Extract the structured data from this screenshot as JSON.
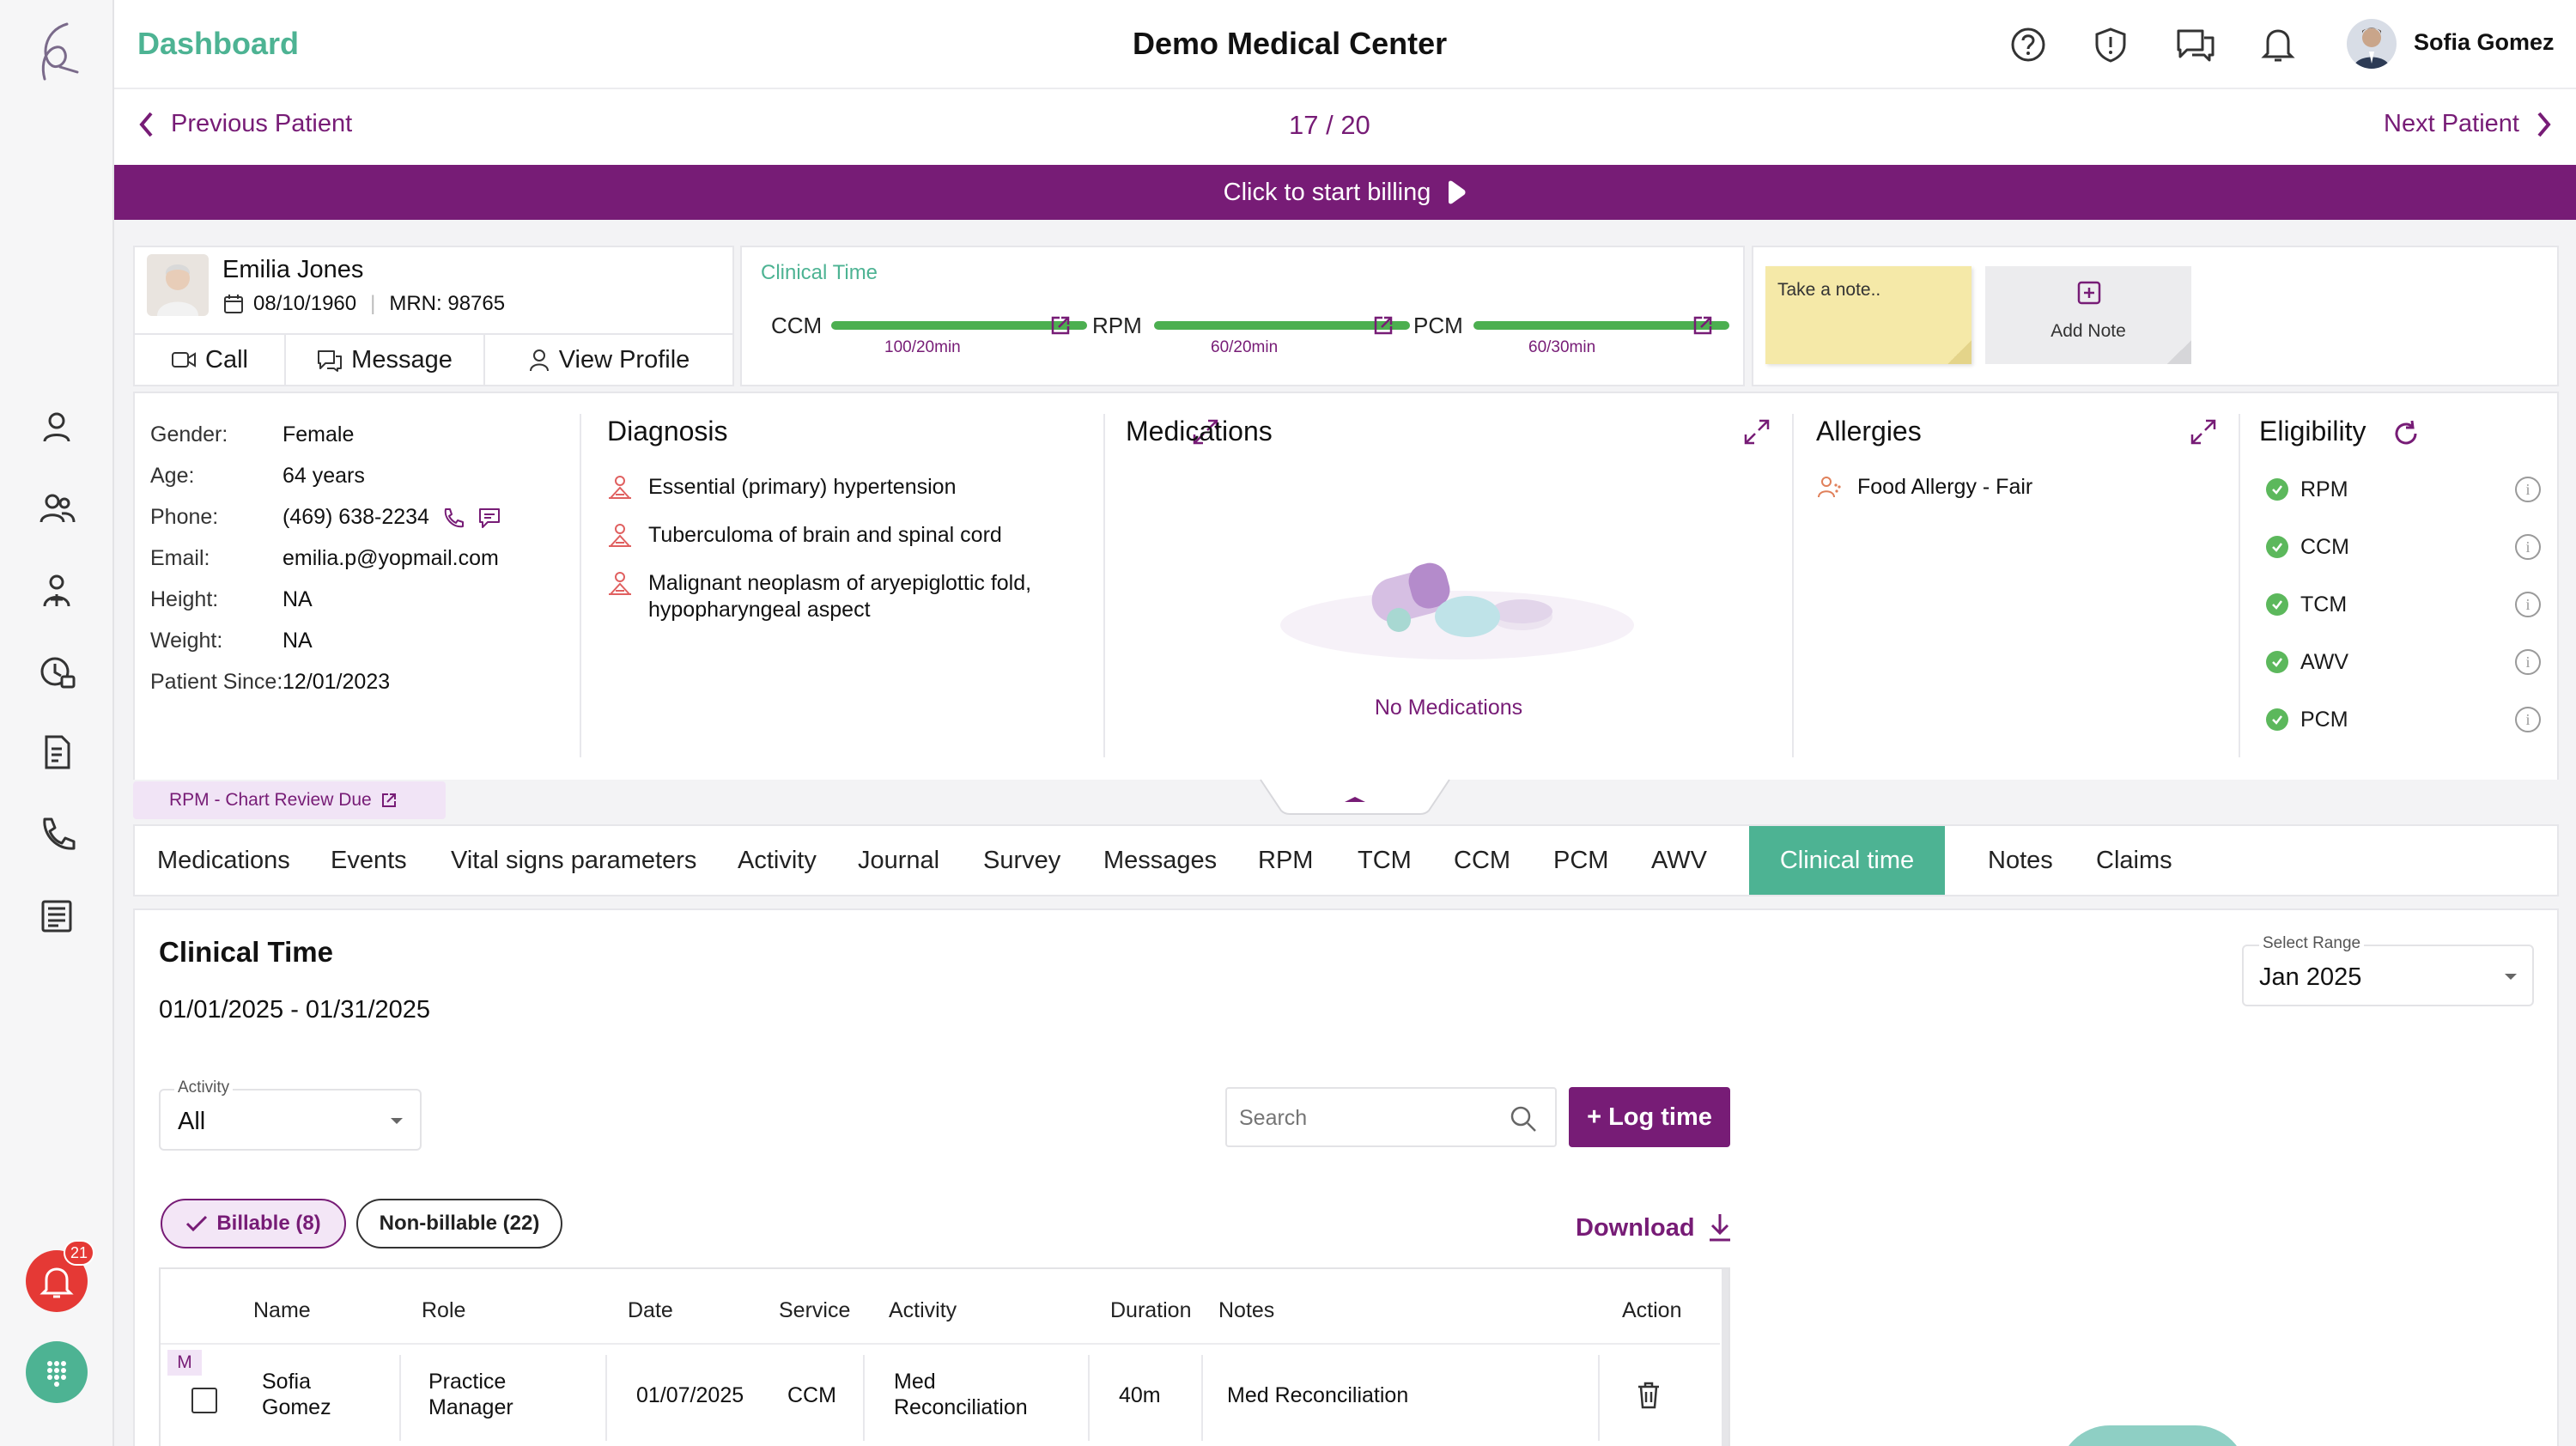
{
  "header": {
    "title": "Dashboard",
    "center_title": "Demo Medical Center",
    "user_name": "Sofia Gomez"
  },
  "nav": {
    "prev": "Previous Patient",
    "counter": "17 / 20",
    "next": "Next Patient"
  },
  "billing": {
    "label": "Click to start billing"
  },
  "patient": {
    "name": "Emilia Jones",
    "dob": "08/10/1960",
    "mrn": "MRN: 98765",
    "actions": {
      "call": "Call",
      "message": "Message",
      "profile": "View Profile"
    },
    "details": {
      "gender_label": "Gender:",
      "gender": "Female",
      "age_label": "Age:",
      "age": "64 years",
      "phone_label": "Phone:",
      "phone": "(469) 638-2234",
      "email_label": "Email:",
      "email": "emilia.p@yopmail.com",
      "height_label": "Height:",
      "height": "NA",
      "weight_label": "Weight:",
      "weight": "NA",
      "since_label": "Patient Since:",
      "since": "12/01/2023"
    }
  },
  "clinical_time_card": {
    "title": "Clinical Time",
    "items": [
      {
        "label": "CCM",
        "value": "100/20min",
        "fill": 1.0
      },
      {
        "label": "RPM",
        "value": "60/20min",
        "fill": 1.0
      },
      {
        "label": "PCM",
        "value": "60/30min",
        "fill": 1.0
      }
    ]
  },
  "notes_card": {
    "placeholder": "Take a note..",
    "add_label": "Add Note"
  },
  "diagnosis": {
    "title": "Diagnosis",
    "items": [
      "Essential (primary) hypertension",
      "Tuberculoma of brain and spinal cord",
      "Malignant neoplasm of aryepiglottic fold,",
      "hypopharyngeal aspect"
    ]
  },
  "medications": {
    "title": "Medications",
    "empty": "No Medications"
  },
  "allergies": {
    "title": "Allergies",
    "items": [
      "Food Allergy - Fair"
    ]
  },
  "eligibility": {
    "title": "Eligibility",
    "items": [
      "RPM",
      "CCM",
      "TCM",
      "AWV",
      "PCM"
    ]
  },
  "due_badge": "RPM - Chart Review Due",
  "tabs": [
    "Medications",
    "Events",
    "Vital signs parameters",
    "Activity",
    "Journal",
    "Survey",
    "Messages",
    "RPM",
    "TCM",
    "CCM",
    "PCM",
    "AWV",
    "Clinical time",
    "Notes",
    "Claims"
  ],
  "active_tab": "Clinical time",
  "clinical_time": {
    "title": "Clinical Time",
    "range_text": "01/01/2025 - 01/31/2025",
    "select_range_label": "Select Range",
    "select_range_value": "Jan 2025",
    "activity_label": "Activity",
    "activity_value": "All",
    "search_placeholder": "Search",
    "log_time": "+ Log time",
    "billable": "Billable (8)",
    "non_billable": "Non-billable (22)",
    "download": "Download",
    "columns": [
      "Name",
      "Role",
      "Date",
      "Service",
      "Activity",
      "Duration",
      "Notes",
      "Action"
    ],
    "rows": [
      {
        "tag": "M",
        "name_first": "Sofia",
        "name_last": "Gomez",
        "role_1": "Practice",
        "role_2": "Manager",
        "date": "01/07/2025",
        "service": "CCM",
        "activity_1": "Med",
        "activity_2": "Reconciliation",
        "duration": "40m",
        "notes": "Med Reconciliation"
      }
    ]
  },
  "fab": {
    "alert_count": "21"
  },
  "colors": {
    "purple": "#771c76",
    "teal": "#4db393",
    "bar_green": "#4caf50"
  }
}
